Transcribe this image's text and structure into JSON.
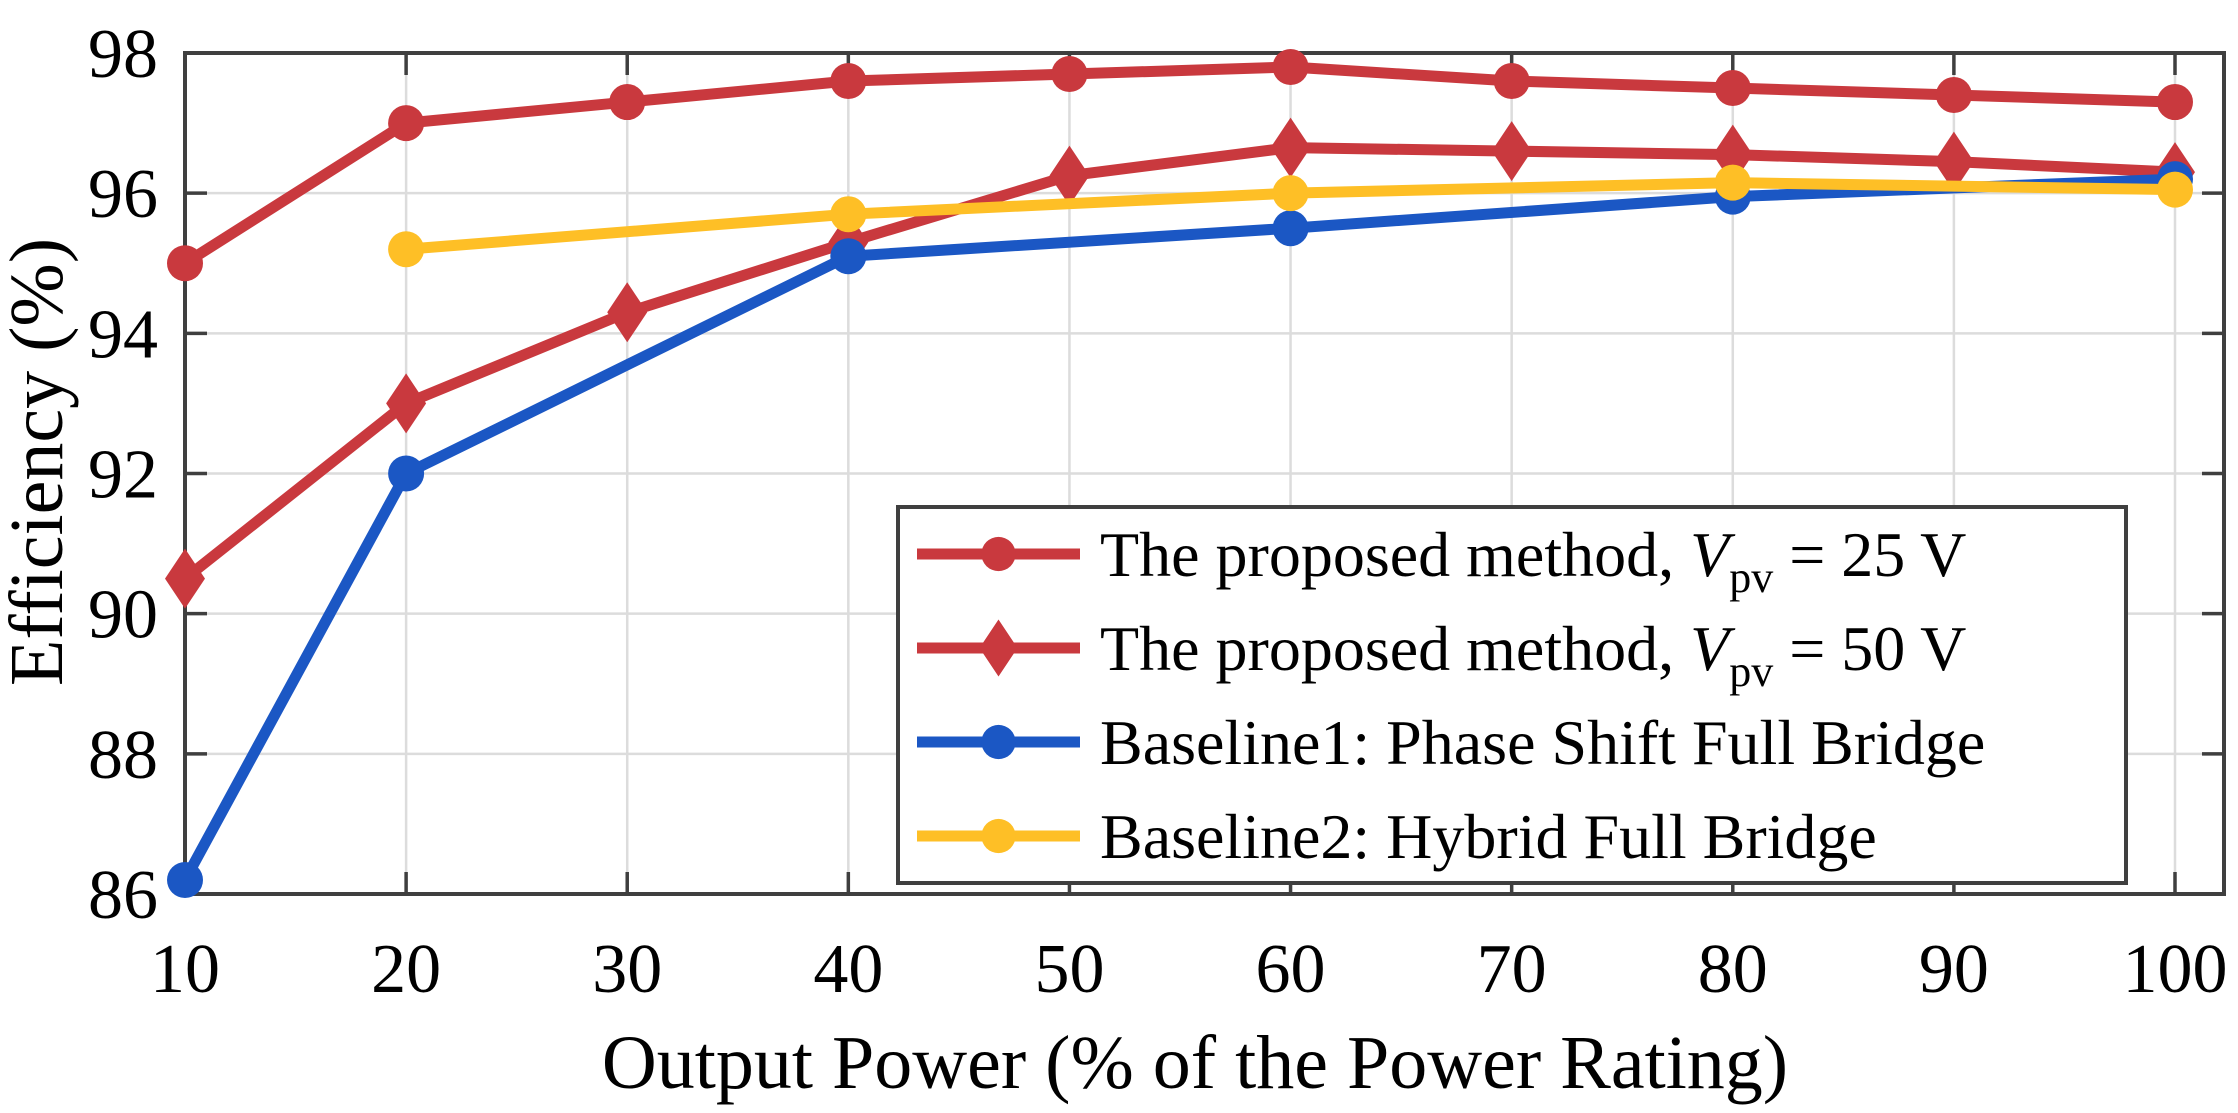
{
  "chart_data": {
    "type": "line",
    "title": "",
    "xlabel": "Output Power (% of the Power Rating)",
    "ylabel": "Efficiency (%)",
    "x": [
      10,
      20,
      30,
      40,
      50,
      60,
      70,
      80,
      90,
      100
    ],
    "x_tick_labels": [
      "10",
      "20",
      "30",
      "40",
      "50",
      "60",
      "70",
      "80",
      "90",
      "100"
    ],
    "y_ticks": [
      86,
      88,
      90,
      92,
      94,
      96,
      98
    ],
    "y_tick_labels": [
      "86",
      "88",
      "90",
      "92",
      "94",
      "96",
      "98"
    ],
    "xlim": [
      10,
      102.2
    ],
    "ylim": [
      86,
      98
    ],
    "grid": true,
    "legend_position": "lower-right-inside",
    "series": [
      {
        "name": "proposed-method-25v",
        "marker": "circle",
        "color": "#C9393E",
        "values": [
          95.0,
          97.0,
          97.3,
          97.6,
          97.7,
          97.8,
          97.6,
          97.5,
          97.4,
          97.3
        ],
        "label_parts": [
          {
            "t": "The proposed method, "
          },
          {
            "t": "V",
            "s": "i"
          },
          {
            "t": "pv",
            "s": "sub"
          },
          {
            "t": " = 25 V"
          }
        ]
      },
      {
        "name": "proposed-method-50v",
        "marker": "diamond",
        "color": "#C9393E",
        "values": [
          90.5,
          93.0,
          94.3,
          95.3,
          96.25,
          96.65,
          96.6,
          96.55,
          96.45,
          96.3
        ],
        "label_parts": [
          {
            "t": "The proposed method, "
          },
          {
            "t": "V",
            "s": "i"
          },
          {
            "t": "pv",
            "s": "sub"
          },
          {
            "t": " = 50 V"
          }
        ]
      },
      {
        "name": "baseline1-phase-shift-full-bridge",
        "marker": "circle",
        "color": "#1B57C4",
        "values": [
          86.2,
          92.0,
          null,
          95.1,
          null,
          95.5,
          null,
          95.95,
          null,
          96.2
        ],
        "label_parts": [
          {
            "t": "Baseline1: Phase Shift Full Bridge"
          }
        ]
      },
      {
        "name": "baseline2-hybrid-full-bridge",
        "marker": "circle",
        "color": "#FEBF26",
        "values": [
          null,
          95.2,
          null,
          95.7,
          null,
          96.0,
          null,
          96.15,
          null,
          96.05
        ],
        "label_parts": [
          {
            "t": "Baseline2: Hybrid Full Bridge"
          }
        ]
      }
    ],
    "colors": {
      "axis": "#3F3F3F",
      "grid": "#DCDCDC",
      "background": "#FFFFFF"
    }
  }
}
